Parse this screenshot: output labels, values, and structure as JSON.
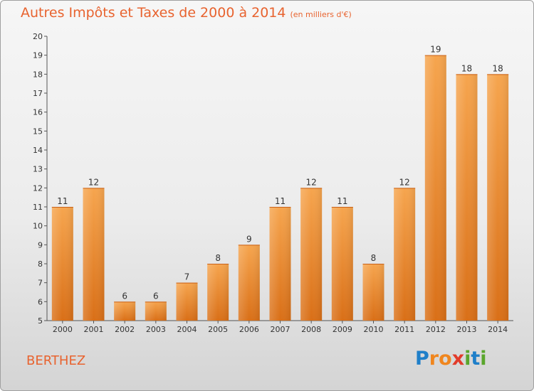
{
  "title": "Autres Impôts et Taxes de 2000 à 2014",
  "subtitle": "(en milliers d'€)",
  "commune": "BERTHEZ",
  "logo": {
    "text": "Proxiti",
    "letters": [
      "P",
      "r",
      "o",
      "x",
      "i",
      "t",
      "i"
    ],
    "colors": [
      "#1f7fc9",
      "#f0861e",
      "#f0861e",
      "#e23b2a",
      "#5aa62c",
      "#1f7fc9",
      "#5aa62c"
    ]
  },
  "colors": {
    "bar": "#f09033",
    "accent": "#e8632f"
  },
  "chart_data": {
    "type": "bar",
    "categories": [
      "2000",
      "2001",
      "2002",
      "2003",
      "2004",
      "2005",
      "2006",
      "2007",
      "2008",
      "2009",
      "2010",
      "2011",
      "2012",
      "2013",
      "2014"
    ],
    "values": [
      11,
      12,
      6,
      6,
      7,
      8,
      9,
      11,
      12,
      11,
      8,
      12,
      19,
      18,
      18
    ],
    "title": "Autres Impôts et Taxes de 2000 à 2014",
    "xlabel": "",
    "ylabel": "",
    "ylim": [
      5,
      20
    ],
    "yticks": [
      5,
      6,
      7,
      8,
      9,
      10,
      11,
      12,
      13,
      14,
      15,
      16,
      17,
      18,
      19,
      20
    ],
    "grid": false,
    "legend": "none"
  }
}
